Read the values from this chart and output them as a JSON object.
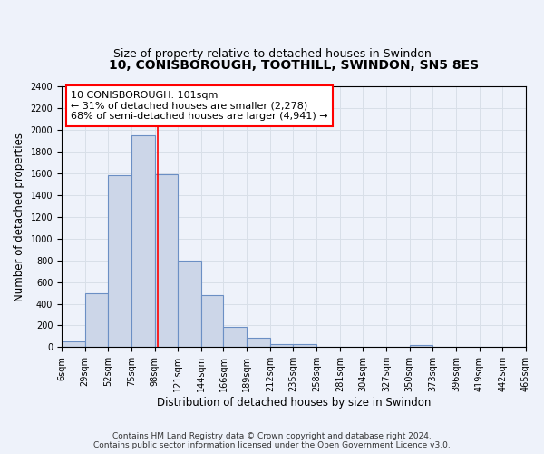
{
  "title": "10, CONISBOROUGH, TOOTHILL, SWINDON, SN5 8ES",
  "subtitle": "Size of property relative to detached houses in Swindon",
  "xlabel": "Distribution of detached houses by size in Swindon",
  "ylabel": "Number of detached properties",
  "bin_edges": [
    6,
    29,
    52,
    75,
    98,
    121,
    144,
    166,
    189,
    212,
    235,
    258,
    281,
    304,
    327,
    350,
    373,
    396,
    419,
    442,
    465
  ],
  "bin_heights": [
    50,
    500,
    1580,
    1950,
    1590,
    800,
    480,
    190,
    90,
    30,
    30,
    0,
    0,
    0,
    0,
    20,
    0,
    0,
    0,
    0
  ],
  "bar_facecolor": "#ccd6e8",
  "bar_edgecolor": "#6b8fc4",
  "ylim": [
    0,
    2400
  ],
  "yticks": [
    0,
    200,
    400,
    600,
    800,
    1000,
    1200,
    1400,
    1600,
    1800,
    2000,
    2200,
    2400
  ],
  "xtick_labels": [
    "6sqm",
    "29sqm",
    "52sqm",
    "75sqm",
    "98sqm",
    "121sqm",
    "144sqm",
    "166sqm",
    "189sqm",
    "212sqm",
    "235sqm",
    "258sqm",
    "281sqm",
    "304sqm",
    "327sqm",
    "350sqm",
    "373sqm",
    "396sqm",
    "419sqm",
    "442sqm",
    "465sqm"
  ],
  "property_line_x": 101,
  "annotation_title": "10 CONISBOROUGH: 101sqm",
  "annotation_line1": "← 31% of detached houses are smaller (2,278)",
  "annotation_line2": "68% of semi-detached houses are larger (4,941) →",
  "footer_line1": "Contains HM Land Registry data © Crown copyright and database right 2024.",
  "footer_line2": "Contains public sector information licensed under the Open Government Licence v3.0.",
  "background_color": "#eef2fa",
  "plot_bg_color": "#eef2fa",
  "grid_color": "#d8dfe8",
  "title_fontsize": 10,
  "subtitle_fontsize": 9,
  "axis_label_fontsize": 8.5,
  "tick_fontsize": 7,
  "footer_fontsize": 6.5,
  "annotation_fontsize": 8
}
